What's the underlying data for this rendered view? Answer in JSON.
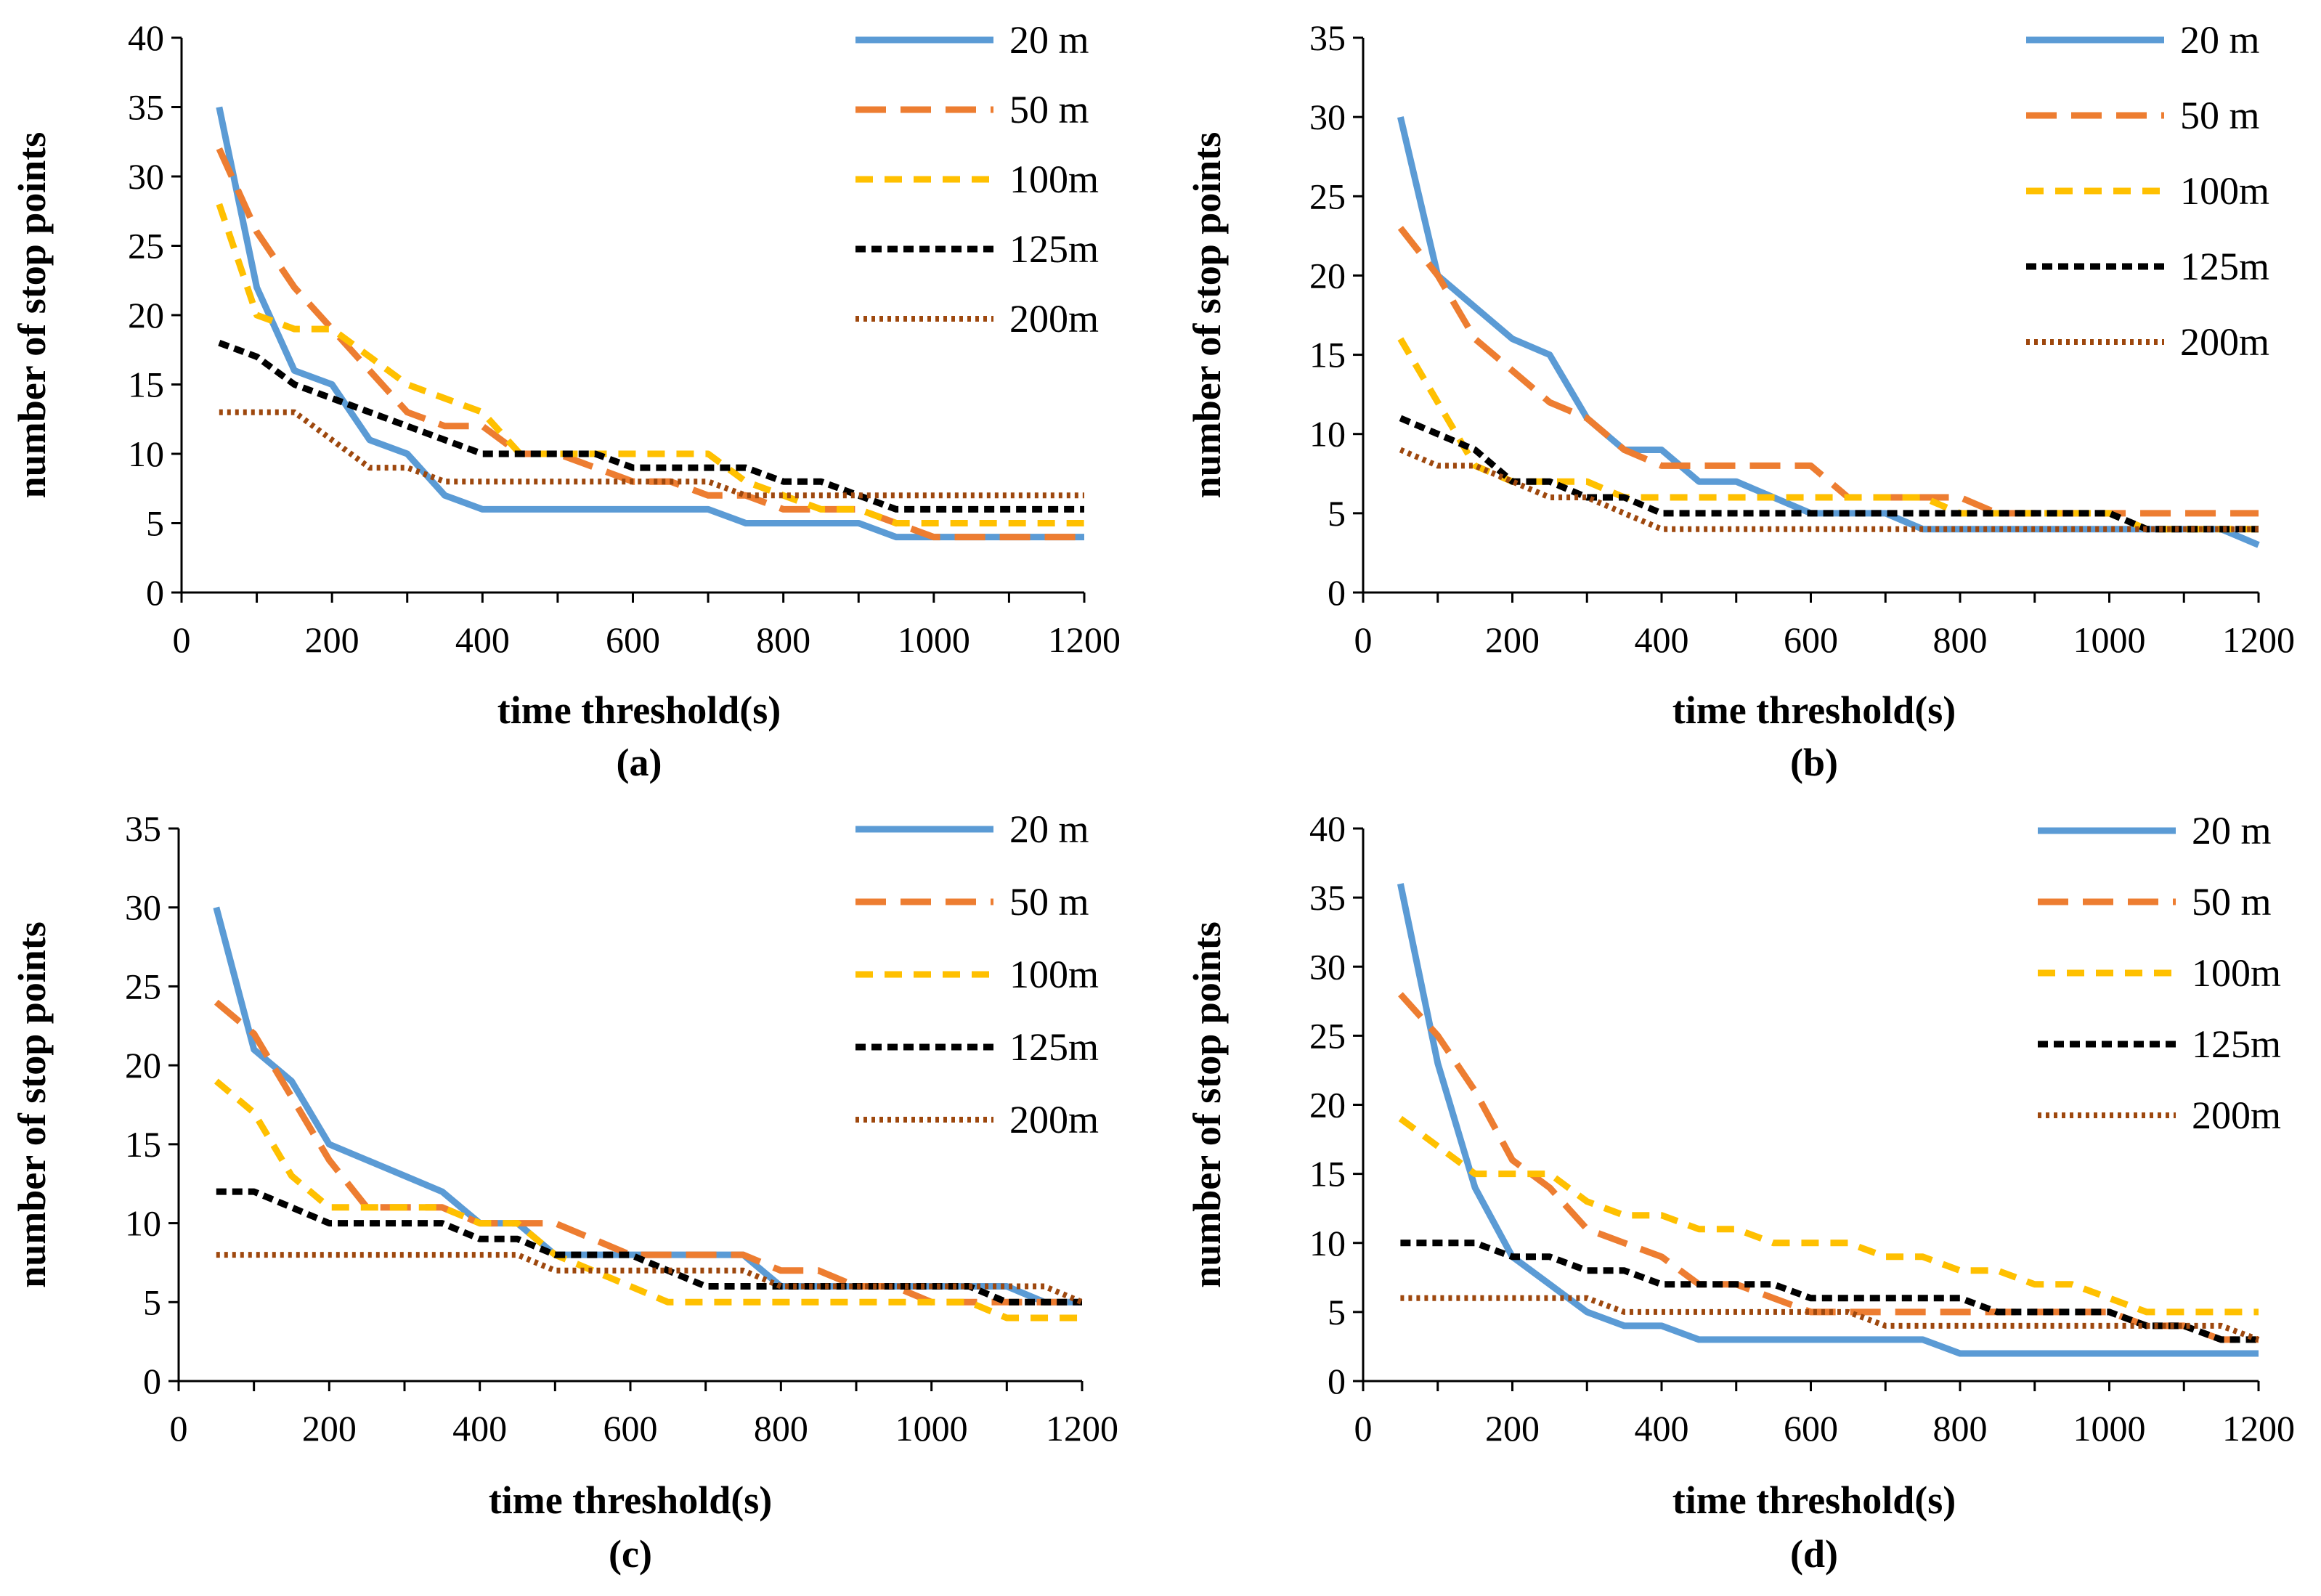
{
  "series_styles": [
    {
      "name": "20 m",
      "color": "#5B9BD5",
      "dash": "solid"
    },
    {
      "name": "50 m",
      "color": "#ED7D31",
      "dash": "long-dash"
    },
    {
      "name": "100m",
      "color": "#FFC000",
      "dash": "dash"
    },
    {
      "name": "125m",
      "color": "#000000",
      "dash": "short-dash"
    },
    {
      "name": "200m",
      "color": "#9E480E",
      "dash": "dot"
    }
  ],
  "chart_data": [
    {
      "type": "line",
      "panel_label": "(a)",
      "xlabel": "time threshold(s)",
      "ylabel": "number of stop points",
      "xlim": [
        0,
        1200
      ],
      "ylim": [
        0,
        40
      ],
      "xticks": [
        0,
        200,
        400,
        600,
        800,
        1000,
        1200
      ],
      "yticks": [
        0,
        5,
        10,
        15,
        20,
        25,
        30,
        35,
        40
      ],
      "x": [
        50,
        100,
        150,
        200,
        250,
        300,
        350,
        400,
        450,
        500,
        550,
        600,
        650,
        700,
        750,
        800,
        850,
        900,
        950,
        1000,
        1050,
        1100,
        1150,
        1200
      ],
      "legend": "top-right",
      "grid": false,
      "series": [
        {
          "name": "20 m",
          "values": [
            35,
            22,
            16,
            15,
            11,
            10,
            7,
            6,
            6,
            6,
            6,
            6,
            6,
            6,
            5,
            5,
            5,
            5,
            4,
            4,
            4,
            4,
            4,
            4
          ]
        },
        {
          "name": "50 m",
          "values": [
            32,
            26,
            22,
            19,
            16,
            13,
            12,
            12,
            10,
            10,
            9,
            8,
            8,
            7,
            7,
            6,
            6,
            6,
            5,
            4,
            4,
            4,
            4,
            4
          ]
        },
        {
          "name": "100m",
          "values": [
            28,
            20,
            19,
            19,
            17,
            15,
            14,
            13,
            10,
            10,
            10,
            10,
            10,
            10,
            8,
            7,
            6,
            6,
            5,
            5,
            5,
            5,
            5,
            5
          ]
        },
        {
          "name": "125m",
          "values": [
            18,
            17,
            15,
            14,
            13,
            12,
            11,
            10,
            10,
            10,
            10,
            9,
            9,
            9,
            9,
            8,
            8,
            7,
            6,
            6,
            6,
            6,
            6,
            6
          ]
        },
        {
          "name": "200m",
          "values": [
            13,
            13,
            13,
            11,
            9,
            9,
            8,
            8,
            8,
            8,
            8,
            8,
            8,
            8,
            7,
            7,
            7,
            7,
            7,
            7,
            7,
            7,
            7,
            7
          ]
        }
      ]
    },
    {
      "type": "line",
      "panel_label": "(b)",
      "xlabel": "time threshold(s)",
      "ylabel": "number of stop points",
      "xlim": [
        0,
        1200
      ],
      "ylim": [
        0,
        35
      ],
      "xticks": [
        0,
        200,
        400,
        600,
        800,
        1000,
        1200
      ],
      "yticks": [
        0,
        5,
        10,
        15,
        20,
        25,
        30,
        35
      ],
      "x": [
        50,
        100,
        150,
        200,
        250,
        300,
        350,
        400,
        450,
        500,
        550,
        600,
        650,
        700,
        750,
        800,
        850,
        900,
        950,
        1000,
        1050,
        1100,
        1150,
        1200
      ],
      "legend": "top-right",
      "grid": false,
      "series": [
        {
          "name": "20 m",
          "values": [
            30,
            20,
            18,
            16,
            15,
            11,
            9,
            9,
            7,
            7,
            6,
            5,
            5,
            5,
            4,
            4,
            4,
            4,
            4,
            4,
            4,
            4,
            4,
            3
          ]
        },
        {
          "name": "50 m",
          "values": [
            23,
            20,
            16,
            14,
            12,
            11,
            9,
            8,
            8,
            8,
            8,
            8,
            6,
            6,
            6,
            6,
            5,
            5,
            5,
            5,
            5,
            5,
            5,
            5
          ]
        },
        {
          "name": "100m",
          "values": [
            16,
            12,
            8,
            7,
            7,
            7,
            6,
            6,
            6,
            6,
            6,
            6,
            6,
            6,
            6,
            5,
            5,
            5,
            5,
            5,
            4,
            4,
            4,
            4
          ]
        },
        {
          "name": "125m",
          "values": [
            11,
            10,
            9,
            7,
            7,
            6,
            6,
            5,
            5,
            5,
            5,
            5,
            5,
            5,
            5,
            5,
            5,
            5,
            5,
            5,
            4,
            4,
            4,
            4
          ]
        },
        {
          "name": "200m",
          "values": [
            9,
            8,
            8,
            7,
            6,
            6,
            5,
            4,
            4,
            4,
            4,
            4,
            4,
            4,
            4,
            4,
            4,
            4,
            4,
            4,
            4,
            4,
            4,
            4
          ]
        }
      ]
    },
    {
      "type": "line",
      "panel_label": "(c)",
      "xlabel": "time threshold(s)",
      "ylabel": "number of stop points",
      "xlim": [
        0,
        1200
      ],
      "ylim": [
        0,
        35
      ],
      "xticks": [
        0,
        200,
        400,
        600,
        800,
        1000,
        1200
      ],
      "yticks": [
        0,
        5,
        10,
        15,
        20,
        25,
        30,
        35
      ],
      "x": [
        50,
        100,
        150,
        200,
        250,
        300,
        350,
        400,
        450,
        500,
        550,
        600,
        650,
        700,
        750,
        800,
        850,
        900,
        950,
        1000,
        1050,
        1100,
        1150,
        1200
      ],
      "legend": "top-right",
      "grid": false,
      "series": [
        {
          "name": "20 m",
          "values": [
            30,
            21,
            19,
            15,
            14,
            13,
            12,
            10,
            10,
            8,
            8,
            8,
            8,
            8,
            8,
            6,
            6,
            6,
            6,
            6,
            6,
            6,
            5,
            5
          ]
        },
        {
          "name": "50 m",
          "values": [
            24,
            22,
            18,
            14,
            11,
            11,
            11,
            10,
            10,
            10,
            9,
            8,
            8,
            8,
            8,
            7,
            7,
            6,
            6,
            5,
            5,
            5,
            5,
            5
          ]
        },
        {
          "name": "100m",
          "values": [
            19,
            17,
            13,
            11,
            11,
            11,
            11,
            10,
            10,
            8,
            7,
            6,
            5,
            5,
            5,
            5,
            5,
            5,
            5,
            5,
            5,
            4,
            4,
            4
          ]
        },
        {
          "name": "125m",
          "values": [
            12,
            12,
            11,
            10,
            10,
            10,
            10,
            9,
            9,
            8,
            8,
            8,
            7,
            6,
            6,
            6,
            6,
            6,
            6,
            6,
            6,
            5,
            5,
            5
          ]
        },
        {
          "name": "200m",
          "values": [
            8,
            8,
            8,
            8,
            8,
            8,
            8,
            8,
            8,
            7,
            7,
            7,
            7,
            7,
            7,
            6,
            6,
            6,
            6,
            6,
            6,
            6,
            6,
            5
          ]
        }
      ]
    },
    {
      "type": "line",
      "panel_label": "(d)",
      "xlabel": "time threshold(s)",
      "ylabel": "number of stop points",
      "xlim": [
        0,
        1200
      ],
      "ylim": [
        0,
        40
      ],
      "xticks": [
        0,
        200,
        400,
        600,
        800,
        1000,
        1200
      ],
      "yticks": [
        0,
        5,
        10,
        15,
        20,
        25,
        30,
        35,
        40
      ],
      "x": [
        50,
        100,
        150,
        200,
        250,
        300,
        350,
        400,
        450,
        500,
        550,
        600,
        650,
        700,
        750,
        800,
        850,
        900,
        950,
        1000,
        1050,
        1100,
        1150,
        1200
      ],
      "legend": "top-right",
      "grid": false,
      "series": [
        {
          "name": "20 m",
          "values": [
            36,
            23,
            14,
            9,
            7,
            5,
            4,
            4,
            3,
            3,
            3,
            3,
            3,
            3,
            3,
            2,
            2,
            2,
            2,
            2,
            2,
            2,
            2,
            2
          ]
        },
        {
          "name": "50 m",
          "values": [
            28,
            25,
            21,
            16,
            14,
            11,
            10,
            9,
            7,
            7,
            6,
            5,
            5,
            5,
            5,
            5,
            5,
            5,
            5,
            5,
            4,
            4,
            3,
            3
          ]
        },
        {
          "name": "100m",
          "values": [
            19,
            17,
            15,
            15,
            15,
            13,
            12,
            12,
            11,
            11,
            10,
            10,
            10,
            9,
            9,
            8,
            8,
            7,
            7,
            6,
            5,
            5,
            5,
            5
          ]
        },
        {
          "name": "125m",
          "values": [
            10,
            10,
            10,
            9,
            9,
            8,
            8,
            7,
            7,
            7,
            7,
            6,
            6,
            6,
            6,
            6,
            5,
            5,
            5,
            5,
            4,
            4,
            3,
            3
          ]
        },
        {
          "name": "200m",
          "values": [
            6,
            6,
            6,
            6,
            6,
            6,
            5,
            5,
            5,
            5,
            5,
            5,
            5,
            4,
            4,
            4,
            4,
            4,
            4,
            4,
            4,
            4,
            4,
            3
          ]
        }
      ]
    }
  ]
}
